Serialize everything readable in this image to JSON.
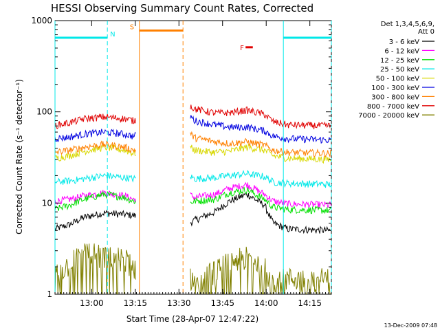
{
  "chart_data": {
    "type": "line",
    "title": "HESSI Observing Summary Count Rates, Corrected",
    "xlabel": "Start Time (28-Apr-07 12:47:22)",
    "ylabel": "Corrected Count Rate (s⁻¹ detector⁻¹)",
    "x_unit": "minutes after 12:47:22",
    "xlim": [
      0,
      95
    ],
    "ylim": [
      1,
      1000
    ],
    "y_scale": "log",
    "x_ticks": [
      {
        "label": "13:00",
        "value": 12.6
      },
      {
        "label": "13:15",
        "value": 27.6
      },
      {
        "label": "13:30",
        "value": 42.6
      },
      {
        "label": "13:45",
        "value": 57.6
      },
      {
        "label": "14:00",
        "value": 72.6
      },
      {
        "label": "14:15",
        "value": 87.6
      }
    ],
    "y_ticks": [
      {
        "label": "1",
        "value": 1
      },
      {
        "label": "10",
        "value": 10
      },
      {
        "label": "100",
        "value": 100
      },
      {
        "label": "1000",
        "value": 1000
      }
    ],
    "legend": {
      "position": "right",
      "header": [
        "Det 1,3,4,5,6,9,",
        "Att 0"
      ]
    },
    "series": [
      {
        "name": "3 - 6 keV",
        "color": "#000000",
        "x": [
          0,
          5,
          10,
          17,
          24,
          27,
          46,
          48,
          55,
          60,
          66,
          72,
          75,
          80,
          95
        ],
        "y": [
          5.2,
          5.8,
          7,
          7.8,
          7.5,
          7.3,
          6,
          6.5,
          8,
          10.5,
          12.5,
          9.5,
          6,
          5.2,
          5
        ]
      },
      {
        "name": "6 - 12 keV",
        "color": "#ff00ff",
        "x": [
          0,
          5,
          10,
          17,
          24,
          27,
          46,
          48,
          55,
          60,
          66,
          72,
          75,
          80,
          95
        ],
        "y": [
          10.5,
          11,
          12,
          13,
          12,
          11,
          12.5,
          11.5,
          12.5,
          14.5,
          16,
          12.5,
          10.5,
          9.8,
          9.5
        ]
      },
      {
        "name": "12 - 25 keV",
        "color": "#00e000",
        "x": [
          0,
          5,
          10,
          17,
          24,
          27,
          46,
          48,
          55,
          60,
          66,
          72,
          75,
          80,
          95
        ],
        "y": [
          8.5,
          9.5,
          11,
          12.5,
          11.5,
          10.5,
          10,
          10.5,
          11,
          13,
          14,
          11,
          9,
          8.5,
          8.3
        ]
      },
      {
        "name": "25 - 50 keV",
        "color": "#00e8e8",
        "x": [
          0,
          5,
          10,
          17,
          24,
          27,
          46,
          48,
          55,
          60,
          66,
          72,
          75,
          80,
          95
        ],
        "y": [
          17,
          17.5,
          18.5,
          20,
          19,
          18.5,
          20,
          18.5,
          19,
          20,
          21,
          19.5,
          17,
          16.5,
          16
        ]
      },
      {
        "name": "50 - 100 keV",
        "color": "#d8d800",
        "x": [
          0,
          5,
          10,
          17,
          24,
          27,
          46,
          48,
          55,
          60,
          66,
          72,
          75,
          80,
          95
        ],
        "y": [
          31,
          33,
          37,
          41,
          38,
          35,
          42,
          38,
          36,
          37,
          41,
          38,
          33,
          31,
          30
        ]
      },
      {
        "name": "100 - 300 keV",
        "color": "#0000e0",
        "x": [
          0,
          5,
          10,
          17,
          24,
          27,
          46,
          48,
          55,
          60,
          66,
          72,
          75,
          80,
          95
        ],
        "y": [
          51,
          53,
          57,
          60,
          57,
          54,
          94,
          80,
          72,
          68,
          68,
          62,
          54,
          51,
          49
        ]
      },
      {
        "name": "300 - 800 keV",
        "color": "#ff8000",
        "x": [
          0,
          5,
          10,
          17,
          24,
          27,
          46,
          48,
          55,
          60,
          66,
          72,
          75,
          80,
          95
        ],
        "y": [
          36,
          38,
          41,
          44,
          41,
          38,
          60,
          52,
          47,
          45,
          47,
          43,
          38,
          36,
          35
        ]
      },
      {
        "name": "800 - 7000 keV",
        "color": "#e00000",
        "x": [
          0,
          5,
          10,
          17,
          24,
          27,
          46,
          48,
          55,
          60,
          66,
          72,
          75,
          80,
          95
        ],
        "y": [
          71,
          76,
          84,
          88,
          84,
          80,
          120,
          108,
          97,
          98,
          104,
          94,
          78,
          72,
          70
        ]
      },
      {
        "name": "7000 - 20000 keV",
        "color": "#808000",
        "x": [
          0,
          5,
          10,
          17,
          24,
          27,
          46,
          48,
          55,
          60,
          66,
          72,
          75,
          80,
          95
        ],
        "y": [
          1.6,
          2.2,
          3,
          2.6,
          2.5,
          2,
          1.5,
          1.5,
          1.8,
          2.3,
          2.6,
          2,
          1.4,
          1.5,
          1.5
        ]
      }
    ],
    "gaps": [
      [
        27.8,
        46.3
      ]
    ],
    "annotations": [
      {
        "label": "N",
        "color": "#00e8e8",
        "bar": [
          0,
          18
        ],
        "level": 650,
        "dashed_at": 18,
        "solid_at": 0
      },
      {
        "label": "S",
        "color": "#ff8000",
        "bar": [
          29,
          44
        ],
        "level": 780,
        "solid_at": 29,
        "dashed_at": 44
      },
      {
        "label": "F",
        "color": "#e00000",
        "bar": [
          65.5,
          68
        ],
        "level": 510
      },
      {
        "label": "",
        "color": "#00e8e8",
        "bar": [
          78.5,
          95
        ],
        "level": 650,
        "solid_at": 78.5,
        "dashed_at": 95
      }
    ]
  },
  "footer": {
    "date_stamp": "13-Dec-2009 07:48"
  }
}
